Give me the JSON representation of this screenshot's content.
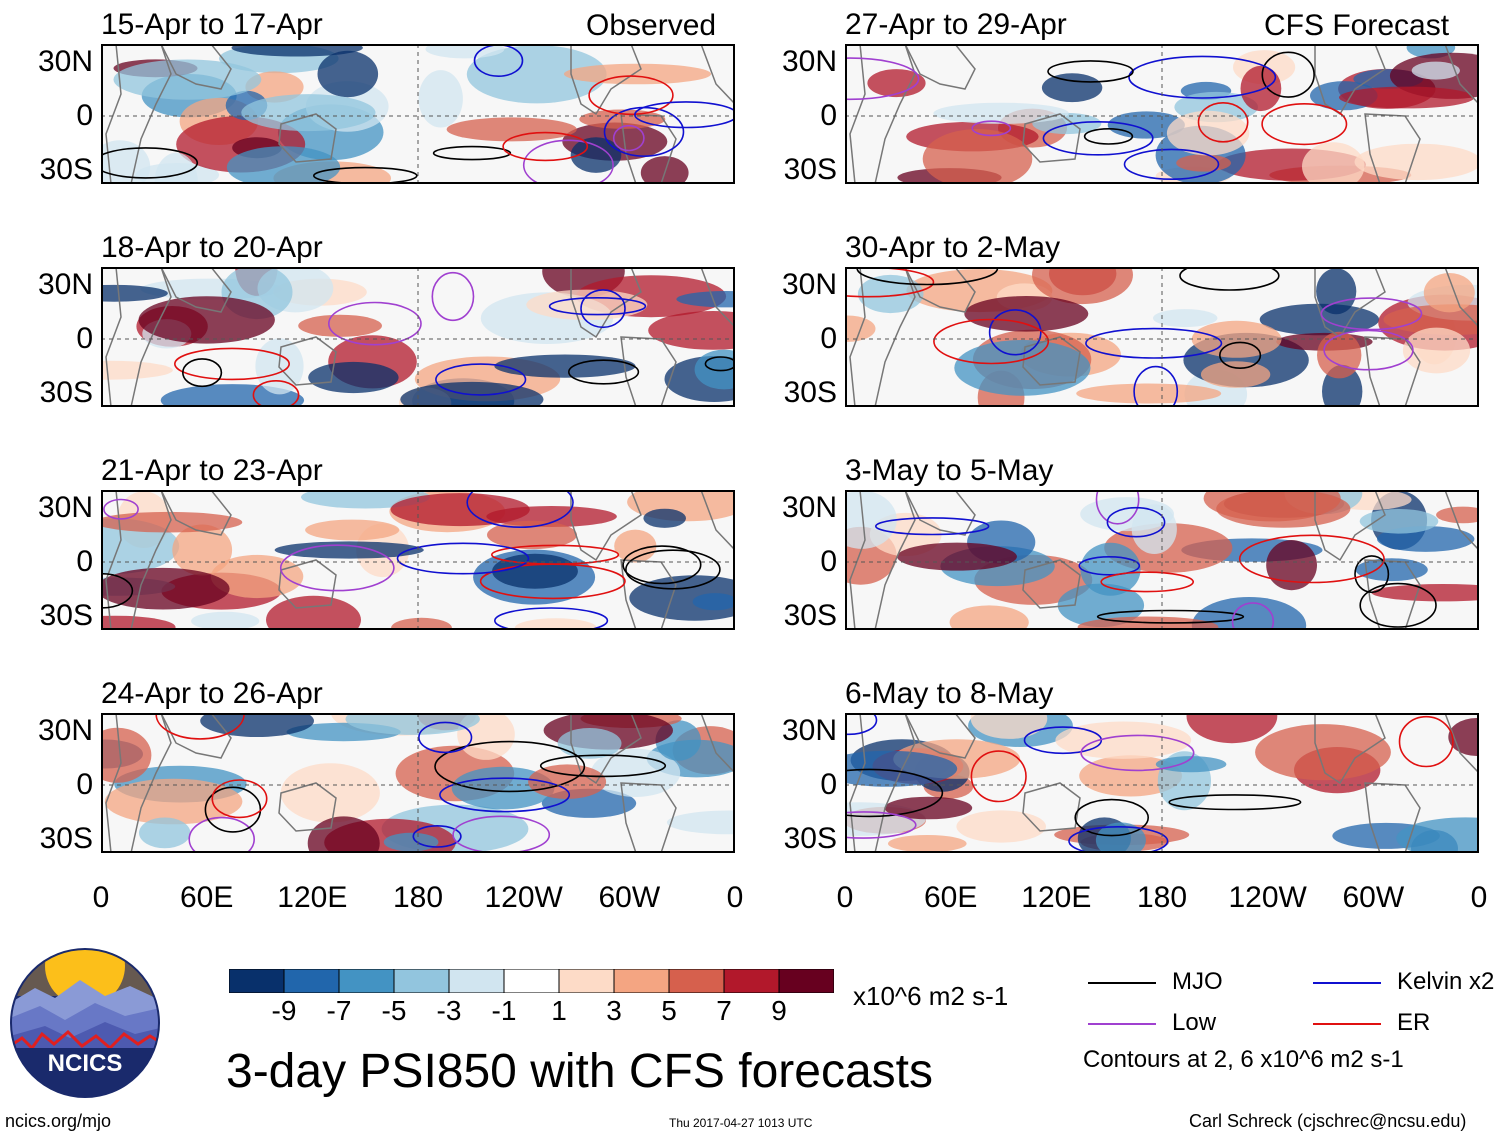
{
  "headers": {
    "left": "Observed",
    "right": "CFS Forecast"
  },
  "panels": [
    {
      "title": "15-Apr to 17-Apr",
      "column": "observed"
    },
    {
      "title": "18-Apr to 20-Apr",
      "column": "observed"
    },
    {
      "title": "21-Apr to 23-Apr",
      "column": "observed"
    },
    {
      "title": "24-Apr to 26-Apr",
      "column": "observed"
    },
    {
      "title": "27-Apr to 29-Apr",
      "column": "forecast"
    },
    {
      "title": "30-Apr to 2-May",
      "column": "forecast"
    },
    {
      "title": "3-May to 5-May",
      "column": "forecast"
    },
    {
      "title": "6-May to 8-May",
      "column": "forecast"
    }
  ],
  "lat_labels": [
    "30N",
    "0",
    "30S"
  ],
  "lon_labels": [
    "0",
    "60E",
    "120E",
    "180",
    "120W",
    "60W",
    "0"
  ],
  "colorbar": {
    "colors": [
      "#08306b",
      "#2166ac",
      "#4393c3",
      "#92c5de",
      "#d1e5f0",
      "#ffffff",
      "#fddbc7",
      "#f4a582",
      "#d6604d",
      "#b2182b",
      "#67001f"
    ],
    "ticks": [
      "-9",
      "-7",
      "-5",
      "-3",
      "-1",
      "1",
      "3",
      "5",
      "7",
      "9"
    ],
    "units": "x10^6 m2 s-1"
  },
  "legend": [
    {
      "label": "MJO",
      "color": "#000000"
    },
    {
      "label": "Kelvin x2",
      "color": "#1010d0"
    },
    {
      "label": "Low",
      "color": "#a040d0"
    },
    {
      "label": "ER",
      "color": "#e01010"
    }
  ],
  "contour_note": "Contours at 2, 6 x10^6 m2 s-1",
  "main_title": "3-day PSI850 with CFS forecasts",
  "logo": {
    "text": "NCICS"
  },
  "footer": {
    "url": "ncics.org/mjo",
    "timestamp": "Thu 2017-04-27 1013 UTC",
    "author": "Carl Schreck (cjschrec@ncsu.edu)"
  }
}
